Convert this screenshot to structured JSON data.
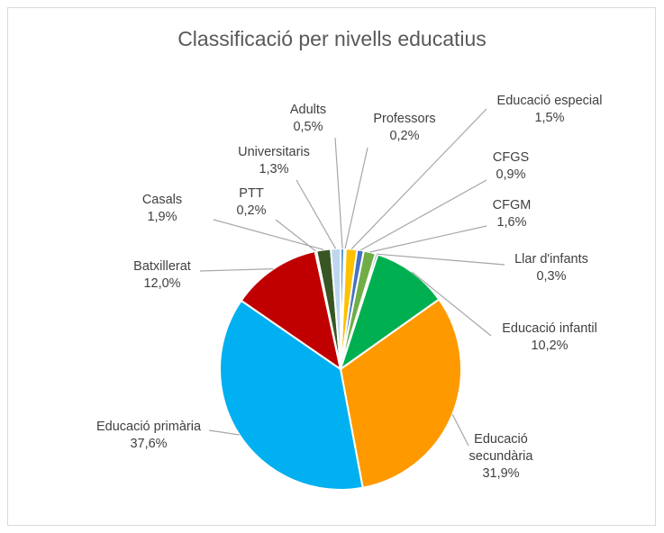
{
  "chart_data": {
    "type": "pie",
    "title": "Classificació per nivells educatius",
    "slices": [
      {
        "name": "Adults",
        "value": 0.5,
        "label": "0,5%",
        "color": "#5b9bd5"
      },
      {
        "name": "Professors",
        "value": 0.2,
        "label": "0,2%",
        "color": "#a5a5a5"
      },
      {
        "name": "Educació especial",
        "value": 1.5,
        "label": "1,5%",
        "color": "#ffc000"
      },
      {
        "name": "CFGS",
        "value": 0.9,
        "label": "0,9%",
        "color": "#4472c4"
      },
      {
        "name": "CFGM",
        "value": 1.6,
        "label": "1,6%",
        "color": "#70ad47"
      },
      {
        "name": "Llar d'infants",
        "value": 0.3,
        "label": "0,3%",
        "color": "#264478"
      },
      {
        "name": "Educació infantil",
        "value": 10.2,
        "label": "10,2%",
        "color": "#00b050"
      },
      {
        "name": "Educació secundària",
        "value": 31.9,
        "label": "31,9%",
        "color": "#ff9900"
      },
      {
        "name": "Educació primària",
        "value": 37.6,
        "label": "37,6%",
        "color": "#00b0f0"
      },
      {
        "name": "Batxillerat",
        "value": 12.0,
        "label": "12,0%",
        "color": "#c00000"
      },
      {
        "name": "PTT",
        "value": 0.2,
        "label": "0,2%",
        "color": "#7f7f7f"
      },
      {
        "name": "Casals",
        "value": 1.9,
        "label": "1,9%",
        "color": "#375623"
      },
      {
        "name": "Universitaris",
        "value": 1.3,
        "label": "1,3%",
        "color": "#bdd7ee"
      }
    ]
  }
}
